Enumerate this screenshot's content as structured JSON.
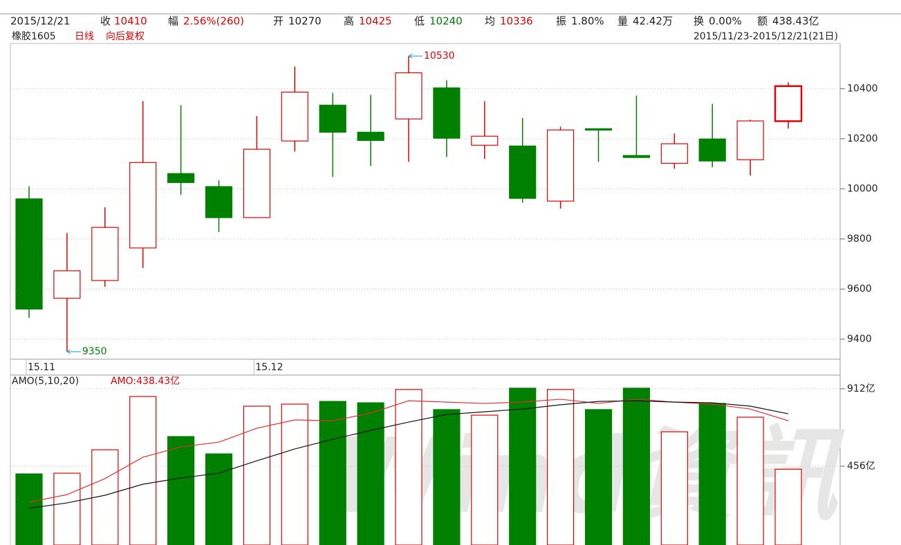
{
  "header": {
    "items": [
      {
        "text": "2015/12/21",
        "color": "#222"
      },
      {
        "text": "收",
        "color": "#222"
      },
      {
        "text": "10410",
        "color": "#e00000"
      },
      {
        "text": "幅",
        "color": "#222"
      },
      {
        "text": "2.56%(260)",
        "color": "#e00000"
      },
      {
        "text": "开",
        "color": "#222"
      },
      {
        "text": "10270",
        "color": "#222"
      },
      {
        "text": "高",
        "color": "#222"
      },
      {
        "text": "10425",
        "color": "#e00000"
      },
      {
        "text": "低",
        "color": "#222"
      },
      {
        "text": "10240",
        "color": "#008000"
      },
      {
        "text": "均",
        "color": "#222"
      },
      {
        "text": "10336",
        "color": "#e00000"
      },
      {
        "text": "振",
        "color": "#222"
      },
      {
        "text": "1.80%",
        "color": "#222"
      },
      {
        "text": "量",
        "color": "#222"
      },
      {
        "text": "42.42万",
        "color": "#222"
      },
      {
        "text": "换",
        "color": "#222"
      },
      {
        "text": "0.00%",
        "color": "#222"
      },
      {
        "text": "额",
        "color": "#222"
      },
      {
        "text": "438.43亿",
        "color": "#222"
      }
    ],
    "symbol": "橡胶1605",
    "period": "日线",
    "adjust": "向后复权",
    "range": "2015/11/23-2015/12/21(21日)"
  },
  "watermark": "Wind資訊",
  "chart_data": [
    {
      "type": "candlestick",
      "categories": [
        "15.11",
        null,
        null,
        null,
        null,
        null,
        "15.12",
        null,
        null,
        null,
        null,
        null,
        null,
        null,
        null,
        null,
        null,
        null,
        null,
        null,
        null
      ],
      "open": [
        9960,
        9563,
        9634,
        9764,
        10061,
        10009,
        9885,
        10191,
        10334,
        10226,
        10279,
        10403,
        10174,
        10171,
        9951,
        10240,
        10133,
        10102,
        10199,
        10116,
        10270
      ],
      "close": [
        9520,
        9673,
        9846,
        10105,
        10025,
        9885,
        10158,
        10386,
        10226,
        10193,
        10463,
        10202,
        10210,
        9962,
        10235,
        10235,
        10125,
        10180,
        10111,
        10271,
        10410
      ],
      "high": [
        10010,
        9824,
        9926,
        10350,
        10334,
        10034,
        10290,
        10488,
        10383,
        10375,
        10530,
        10433,
        10350,
        10282,
        10248,
        10240,
        10372,
        10221,
        10339,
        10276,
        10425
      ],
      "low": [
        9485,
        9350,
        9609,
        9684,
        9976,
        9827,
        9885,
        10149,
        10047,
        10091,
        10108,
        10127,
        10119,
        9945,
        9921,
        10108,
        10125,
        10080,
        10086,
        10053,
        10240
      ],
      "up_color": "#e00000",
      "down_color": "#008000",
      "max_label": 10530,
      "min_label": 9350,
      "annotation_color": "#e00000",
      "arrow_color": "#1a9bc0",
      "ylim": [
        9320,
        10580
      ],
      "yticks": [
        9400,
        9600,
        9800,
        10000,
        10200,
        10400
      ],
      "grid": true
    },
    {
      "type": "bar",
      "title": "AMO(5,10,20)",
      "subtitle": "AMO:438.43亿",
      "values": [
        411,
        415,
        553,
        867,
        631,
        529,
        810,
        822,
        838,
        830,
        908,
        790,
        757,
        916,
        908,
        790,
        916,
        659,
        826,
        745,
        438.43
      ],
      "series": [
        {
          "color": "#e03030",
          "values": [
            244,
            289,
            383,
            509,
            570,
            598,
            680,
            729,
            724,
            769,
            842,
            834,
            826,
            834,
            851,
            826,
            851,
            834,
            822,
            793,
            724
          ]
        },
        {
          "color": "#111111",
          "values": [
            208,
            240,
            285,
            350,
            387,
            415,
            488,
            558,
            615,
            667,
            716,
            761,
            777,
            793,
            818,
            838,
            842,
            834,
            830,
            810,
            765
          ]
        }
      ],
      "ylim": [
        0,
        985
      ],
      "yticks": [
        {
          "value": 456,
          "label": "456亿"
        },
        {
          "value": 912,
          "label": "912亿"
        }
      ],
      "grid": true
    }
  ]
}
